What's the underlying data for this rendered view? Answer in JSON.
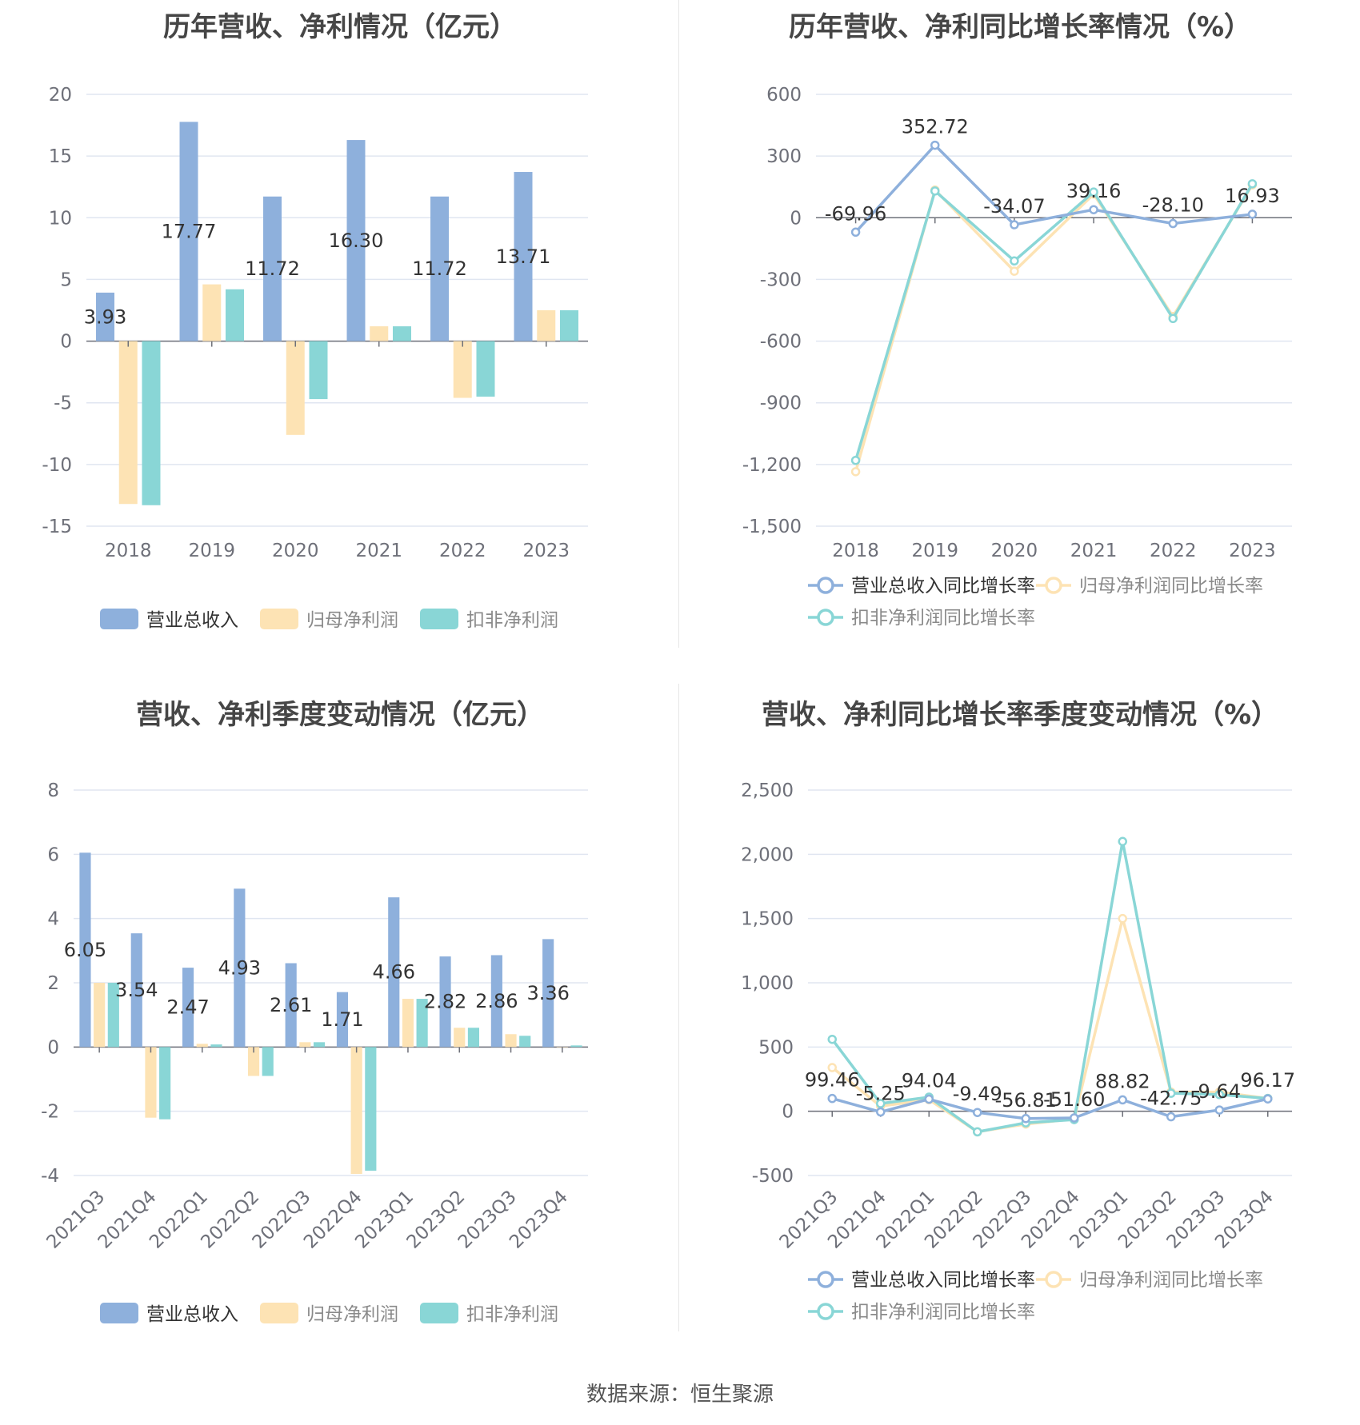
{
  "colors": {
    "revenue": "#8eb0dc",
    "net_profit": "#fde3b4",
    "non_gaap_profit": "#89d6d6",
    "grid": "#e0e6f1",
    "axis": "#6e7079"
  },
  "source": "数据来源：恒生聚源",
  "chart_data": [
    {
      "id": "annual_amounts",
      "type": "bar",
      "title": "历年营收、净利情况（亿元）",
      "categories": [
        "2018",
        "2019",
        "2020",
        "2021",
        "2022",
        "2023"
      ],
      "series": [
        {
          "name": "营业总收入",
          "values": [
            3.93,
            17.77,
            11.72,
            16.3,
            11.72,
            13.71
          ],
          "labels": [
            "3.93",
            "17.77",
            "11.72",
            "16.30",
            "11.72",
            "13.71"
          ]
        },
        {
          "name": "归母净利润",
          "values": [
            -13.2,
            4.6,
            -7.6,
            1.2,
            -4.6,
            2.5
          ]
        },
        {
          "name": "扣非净利润",
          "values": [
            -13.3,
            4.2,
            -4.7,
            1.2,
            -4.5,
            2.5
          ]
        }
      ],
      "ylim": [
        -15,
        20
      ],
      "yticks": [
        "20",
        "15",
        "10",
        "5",
        "0",
        "-5",
        "-10",
        "-15"
      ],
      "grid": true,
      "legend": "bottom"
    },
    {
      "id": "annual_growth",
      "type": "line",
      "title": "历年营收、净利同比增长率情况（%）",
      "categories": [
        "2018",
        "2019",
        "2020",
        "2021",
        "2022",
        "2023"
      ],
      "series": [
        {
          "name": "营业总收入同比增长率",
          "values": [
            -69.96,
            352.72,
            -34.07,
            39.16,
            -28.1,
            16.93
          ],
          "labels": [
            "-69.96",
            "352.72",
            "-34.07",
            "39.16",
            "-28.10",
            "16.93"
          ]
        },
        {
          "name": "归母净利润同比增长率",
          "values": [
            -1235,
            135,
            -260,
            115,
            -480,
            160
          ]
        },
        {
          "name": "扣非净利润同比增长率",
          "values": [
            -1180,
            130,
            -210,
            125,
            -490,
            165
          ]
        }
      ],
      "ylim": [
        -1500,
        600
      ],
      "yticks": [
        "600",
        "300",
        "0",
        "-300",
        "-600",
        "-900",
        "-1,200",
        "-1,500"
      ],
      "grid": true,
      "legend": "bottom"
    },
    {
      "id": "quarterly_amounts",
      "type": "bar",
      "title": "营收、净利季度变动情况（亿元）",
      "categories": [
        "2021Q3",
        "2021Q4",
        "2022Q1",
        "2022Q2",
        "2022Q3",
        "2022Q4",
        "2023Q1",
        "2023Q2",
        "2023Q3",
        "2023Q4"
      ],
      "series": [
        {
          "name": "营业总收入",
          "values": [
            6.05,
            3.54,
            2.47,
            4.93,
            2.61,
            1.71,
            4.66,
            2.82,
            2.86,
            3.36
          ],
          "labels": [
            "6.05",
            "3.54",
            "2.47",
            "4.93",
            "2.61",
            "1.71",
            "4.66",
            "2.82",
            "2.86",
            "3.36"
          ]
        },
        {
          "name": "归母净利润",
          "values": [
            2.0,
            -2.2,
            0.1,
            -0.9,
            0.15,
            -3.95,
            1.5,
            0.6,
            0.4,
            0.0
          ]
        },
        {
          "name": "扣非净利润",
          "values": [
            2.0,
            -2.25,
            0.08,
            -0.9,
            0.15,
            -3.85,
            1.5,
            0.6,
            0.35,
            0.05
          ]
        }
      ],
      "ylim": [
        -4,
        8
      ],
      "yticks": [
        "8",
        "6",
        "4",
        "2",
        "0",
        "-2",
        "-4"
      ],
      "grid": true,
      "legend": "bottom"
    },
    {
      "id": "quarterly_growth",
      "type": "line",
      "title": "营收、净利同比增长率季度变动情况（%）",
      "categories": [
        "2021Q3",
        "2021Q4",
        "2022Q1",
        "2022Q2",
        "2022Q3",
        "2022Q4",
        "2023Q1",
        "2023Q2",
        "2023Q3",
        "2023Q4"
      ],
      "series": [
        {
          "name": "营业总收入同比增长率",
          "values": [
            99.46,
            -5.25,
            94.04,
            -9.49,
            -56.81,
            -51.6,
            88.82,
            -42.75,
            9.64,
            96.17
          ],
          "labels": [
            "99.46",
            "-5.25",
            "94.04",
            "-9.49",
            "-56.81",
            "-51.60",
            "88.82",
            "-42.75",
            "9.64",
            "96.17"
          ]
        },
        {
          "name": "归母净利润同比增长率",
          "values": [
            340,
            40,
            90,
            -160,
            -100,
            -60,
            1500,
            150,
            150,
            100
          ]
        },
        {
          "name": "扣非净利润同比增长率",
          "values": [
            560,
            60,
            110,
            -160,
            -90,
            -65,
            2100,
            140,
            130,
            100
          ]
        }
      ],
      "ylim": [
        -500,
        2500
      ],
      "yticks": [
        "2,500",
        "2,000",
        "1,500",
        "1,000",
        "500",
        "0",
        "-500"
      ],
      "grid": true,
      "legend": "bottom"
    }
  ]
}
